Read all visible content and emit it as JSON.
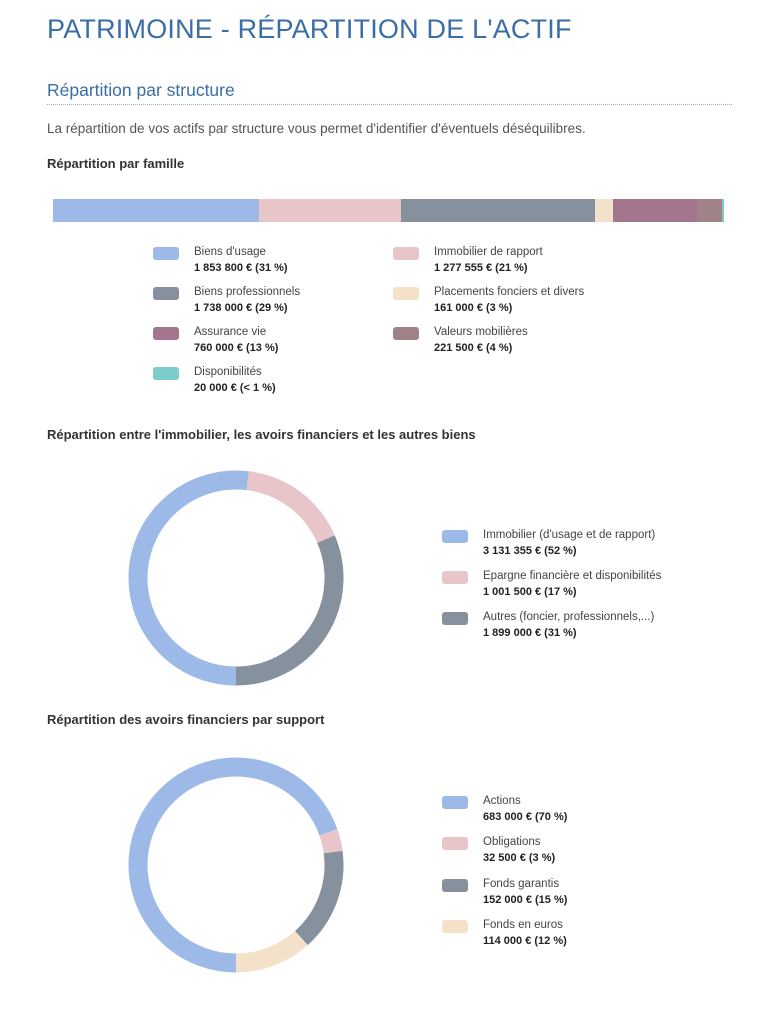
{
  "page": {
    "title": "PATRIMOINE - RÉPARTITION DE L'ACTIF",
    "section_title": "Répartition par structure",
    "intro": "La répartition de vos actifs par structure vous permet d'identifier d'éventuels déséquilibres."
  },
  "colors": {
    "biens_usage": "#9cb9e8",
    "immobilier_rapport": "#e7c5c8",
    "biens_professionnels": "#86919e",
    "placements_fonciers": "#f4e1c9",
    "assurance_vie": "#a5748f",
    "valeurs_mobilieres": "#9f8389",
    "disponibilites": "#7dcccc"
  },
  "chart_data": [
    {
      "type": "bar",
      "orientation": "horizontal-stacked",
      "title": "Répartition par famille",
      "series": [
        {
          "name": "Biens d'usage",
          "value": 1853800,
          "value_label": "1 853 800 € (31 %)",
          "color": "#9cb9e8"
        },
        {
          "name": "Immobilier de rapport",
          "value": 1277555,
          "value_label": "1 277 555 € (21 %)",
          "color": "#e7c5c8"
        },
        {
          "name": "Biens professionnels",
          "value": 1738000,
          "value_label": "1 738 000 € (29 %)",
          "color": "#86919e"
        },
        {
          "name": "Placements fonciers et divers",
          "value": 161000,
          "value_label": "161 000 € (3 %)",
          "color": "#f4e1c9"
        },
        {
          "name": "Assurance vie",
          "value": 760000,
          "value_label": "760 000 € (13 %)",
          "color": "#a5748f"
        },
        {
          "name": "Valeurs mobilières",
          "value": 221500,
          "value_label": "221 500 € (4 %)",
          "color": "#9f8389"
        },
        {
          "name": "Disponibilités",
          "value": 20000,
          "value_label": "20 000 € (< 1 %)",
          "color": "#7dcccc"
        }
      ]
    },
    {
      "type": "pie",
      "style": "donut",
      "title": "Répartition entre l'immobilier, les avoirs financiers et les autres biens",
      "slices": [
        {
          "name": "Immobilier (d'usage et de rapport)",
          "value": 3131355,
          "value_label": "3 131 355 € (52 %)",
          "color": "#9cb9e8"
        },
        {
          "name": "Epargne financière et disponibilités",
          "value": 1001500,
          "value_label": "1 001 500 € (17 %)",
          "color": "#e7c5c8"
        },
        {
          "name": "Autres (foncier, professionnels,...)",
          "value": 1899000,
          "value_label": "1 899 000 € (31 %)",
          "color": "#86919e"
        }
      ]
    },
    {
      "type": "pie",
      "style": "donut",
      "title": "Répartition des avoirs financiers par support",
      "slices": [
        {
          "name": "Actions",
          "value": 683000,
          "value_label": "683 000 € (70 %)",
          "color": "#9cb9e8"
        },
        {
          "name": "Obligations",
          "value": 32500,
          "value_label": "32 500 € (3 %)",
          "color": "#e7c5c8"
        },
        {
          "name": "Fonds garantis",
          "value": 152000,
          "value_label": "152 000 € (15 %)",
          "color": "#86919e"
        },
        {
          "name": "Fonds en euros",
          "value": 114000,
          "value_label": "114 000 € (12 %)",
          "color": "#f4e1c9"
        }
      ]
    }
  ]
}
